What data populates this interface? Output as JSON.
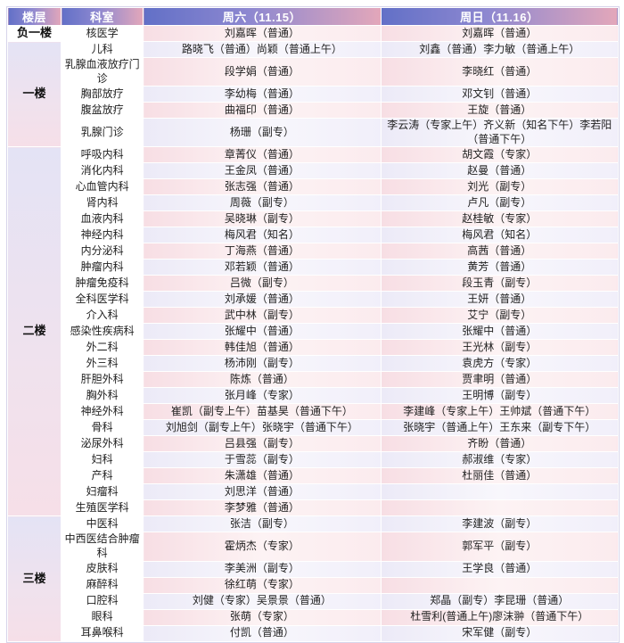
{
  "table": {
    "headers": {
      "floor": "楼层",
      "dept": "科室",
      "sat": "周六（11.15）",
      "sun": "周日（11.16）"
    }
  },
  "floors": [
    {
      "name": "负一楼",
      "rows": [
        {
          "dept": "核医学",
          "sat": "刘嘉晖（普通）",
          "sun": "刘嘉晖（普通）"
        }
      ]
    },
    {
      "name": "一楼",
      "rows": [
        {
          "dept": "儿科",
          "sat": "路晓飞（普通）尚颖（普通上午）",
          "sun": "刘鑫（普通）李力敏（普通上午）"
        },
        {
          "dept": "乳腺血液放疗门诊",
          "sat": "段学娟（普通）",
          "sun": "李晓红（普通）"
        },
        {
          "dept": "胸部放疗",
          "sat": "李幼梅（普通）",
          "sun": "邓文钊（普通）"
        },
        {
          "dept": "腹盆放疗",
          "sat": "曲福印（普通）",
          "sun": "王旋（普通）"
        },
        {
          "dept": "乳腺门诊",
          "sat": "杨珊（副专）",
          "sun": "李云涛（专家上午）齐义新（知名下午）李若阳（普通下午）"
        }
      ]
    },
    {
      "name": "二楼",
      "rows": [
        {
          "dept": "呼吸内科",
          "sat": "章菁仪（普通）",
          "sun": "胡文霞（专家）"
        },
        {
          "dept": "消化内科",
          "sat": "王金凤（普通）",
          "sun": "赵曼（普通）"
        },
        {
          "dept": "心血管内科",
          "sat": "张志强（普通）",
          "sun": "刘光（副专）"
        },
        {
          "dept": "肾内科",
          "sat": "周薇（副专）",
          "sun": "卢凡（副专）"
        },
        {
          "dept": "血液内科",
          "sat": "吴晓琳（副专）",
          "sun": "赵桂敏（专家）"
        },
        {
          "dept": "神经内科",
          "sat": "梅风君（知名）",
          "sun": "梅风君（知名）"
        },
        {
          "dept": "内分泌科",
          "sat": "丁海燕（普通）",
          "sun": "高茜（普通）"
        },
        {
          "dept": "肿瘤内科",
          "sat": "邓若颖（普通）",
          "sun": "黄芳（普通）"
        },
        {
          "dept": "肿瘤免疫科",
          "sat": "吕微（副专）",
          "sun": "段玉青（副专）"
        },
        {
          "dept": "全科医学科",
          "sat": "刘承媛（普通）",
          "sun": "王妍（普通）"
        },
        {
          "dept": "介入科",
          "sat": "武中林（副专）",
          "sun": "艾宁（副专）"
        },
        {
          "dept": "感染性疾病科",
          "sat": "张耀中（普通）",
          "sun": "张耀中（普通）"
        },
        {
          "dept": "外二科",
          "sat": "韩佳旭（普通）",
          "sun": "王光林（副专）"
        },
        {
          "dept": "外三科",
          "sat": "杨沛刚（副专）",
          "sun": "袁虎方（专家）"
        },
        {
          "dept": "肝胆外科",
          "sat": "陈炼（普通）",
          "sun": "贾聿明（普通）"
        },
        {
          "dept": "胸外科",
          "sat": "张月峰（专家）",
          "sun": "王明博（副专）"
        },
        {
          "dept": "神经外科",
          "sat": "崔凯（副专上午）苗基昊（普通下午）",
          "sun": "李建峰（专家上午）王帅斌（普通下午）"
        },
        {
          "dept": "骨科",
          "sat": "刘旭剑（副专上午）张晓宇（普通下午）",
          "sun": "张晓宇（普通上午）王东来（副专下午）"
        },
        {
          "dept": "泌尿外科",
          "sat": "吕县强（副专）",
          "sun": "齐盼（普通）"
        },
        {
          "dept": "妇科",
          "sat": "于雪蕊（副专）",
          "sun": "郝淑维（专家）"
        },
        {
          "dept": "产科",
          "sat": "朱潇雄（普通）",
          "sun": "杜丽佳（普通）"
        },
        {
          "dept": "妇瘤科",
          "sat": "刘思洋（普通）",
          "sun": ""
        },
        {
          "dept": "生殖医学科",
          "sat": "李梦雅（普通）",
          "sun": ""
        }
      ]
    },
    {
      "name": "三楼",
      "rows": [
        {
          "dept": "中医科",
          "sat": "张洁（副专）",
          "sun": "李建波（副专）"
        },
        {
          "dept": "中西医结合肿瘤科",
          "sat": "霍炳杰（专家）",
          "sun": "郭军平（副专）"
        },
        {
          "dept": "皮肤科",
          "sat": "李美洲（副专）",
          "sun": "王学良（普通）"
        },
        {
          "dept": "麻醉科",
          "sat": "徐红萌（专家）",
          "sun": ""
        },
        {
          "dept": "口腔科",
          "sat": "刘健（专家）吴景景（普通）",
          "sun": "郑晶（副专）李昆珊（普通）"
        },
        {
          "dept": "眼科",
          "sat": "张萌（专家）",
          "sun": "杜雪利(普通上午)廖沫翀（普通下午）"
        },
        {
          "dept": "耳鼻喉科",
          "sat": "付凯（普通）",
          "sun": "宋军健（副专）"
        }
      ]
    }
  ],
  "colors": {
    "header_gradient_left": "#6270c7",
    "header_gradient_right": "#e3a7ba",
    "row_pink": "#f7dee4",
    "row_lavender": "#eceaf7",
    "floor_gradient_top": "#e4e3f5",
    "floor_gradient_bottom": "#f6dfe8",
    "grid_line": "#ffffff"
  }
}
